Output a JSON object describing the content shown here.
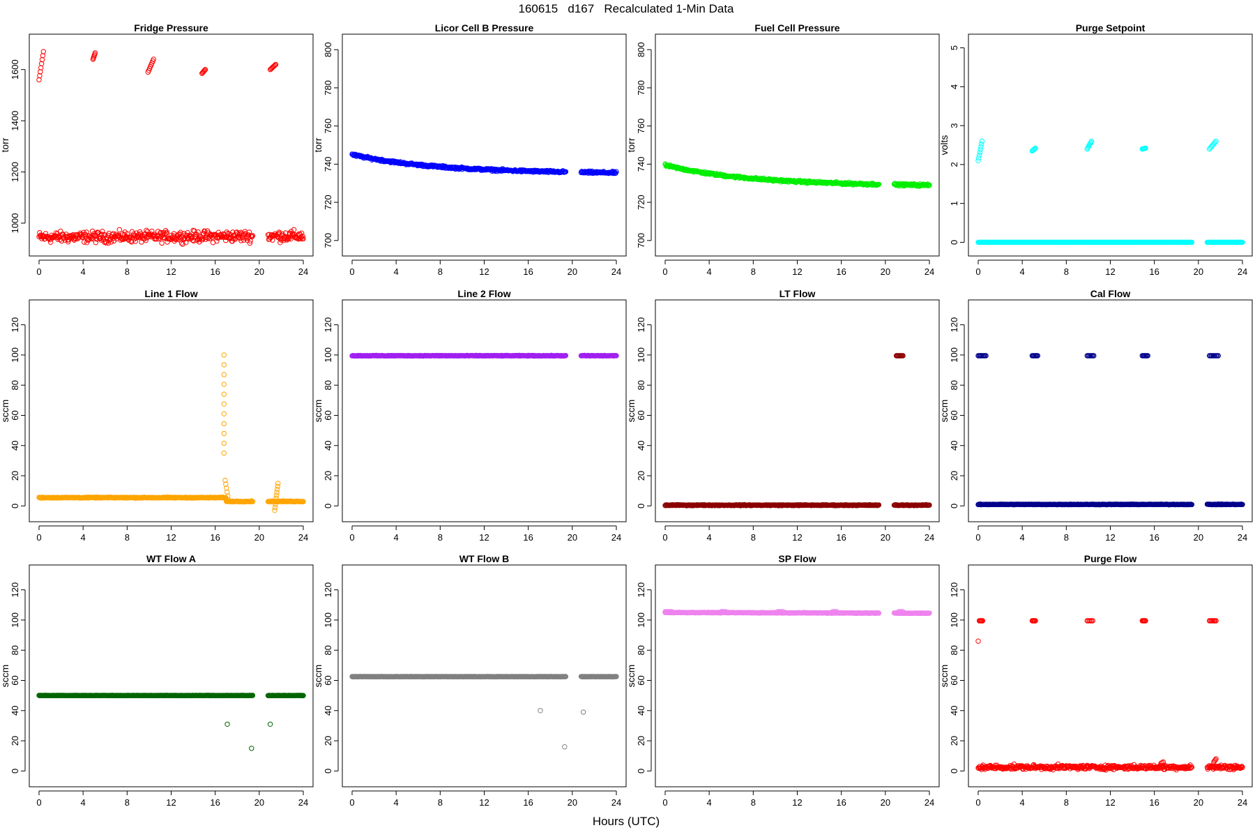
{
  "figure": {
    "title": "160615   d167   Recalculated 1-Min Data",
    "xlabel": "Hours (UTC)"
  },
  "chart_data": [
    {
      "type": "scatter",
      "title": "Fridge Pressure",
      "ylabel": "torr",
      "color": "#ff0000",
      "xlim": [
        0,
        24
      ],
      "xticks": [
        0,
        4,
        8,
        12,
        16,
        20,
        24
      ],
      "ylim": [
        910,
        1700
      ],
      "yticks": [
        1000,
        1200,
        1400,
        1600
      ],
      "gaps": [
        [
          19.4,
          20.8
        ]
      ],
      "baseline": {
        "start": 945,
        "end": 950,
        "noise": 22
      },
      "segments": [
        {
          "x0": 0.0,
          "x1": 0.4,
          "y0": 1560,
          "y1": 1670,
          "n": 8
        },
        {
          "x0": 4.9,
          "x1": 5.1,
          "y0": 1640,
          "y1": 1665,
          "n": 6
        },
        {
          "x0": 9.9,
          "x1": 10.4,
          "y0": 1590,
          "y1": 1640,
          "n": 8
        },
        {
          "x0": 14.8,
          "x1": 15.1,
          "y0": 1585,
          "y1": 1600,
          "n": 6
        },
        {
          "x0": 21.0,
          "x1": 21.5,
          "y0": 1600,
          "y1": 1620,
          "n": 8
        }
      ]
    },
    {
      "type": "scatter",
      "title": "Licor Cell B Pressure",
      "ylabel": "torr",
      "color": "#0000ff",
      "xlim": [
        0,
        24
      ],
      "xticks": [
        0,
        4,
        8,
        12,
        16,
        20,
        24
      ],
      "ylim": [
        697,
        803
      ],
      "yticks": [
        700,
        720,
        740,
        760,
        780,
        800
      ],
      "gaps": [
        [
          19.4,
          20.8
        ]
      ],
      "baseline": {
        "start": 745,
        "end": 735.5,
        "noise": 0.6,
        "shape": "decay"
      },
      "segments": []
    },
    {
      "type": "scatter",
      "title": "Fuel Cell Pressure",
      "ylabel": "torr",
      "color": "#00ee00",
      "xlim": [
        0,
        24
      ],
      "xticks": [
        0,
        4,
        8,
        12,
        16,
        20,
        24
      ],
      "ylim": [
        697,
        803
      ],
      "yticks": [
        700,
        720,
        740,
        760,
        780,
        800
      ],
      "gaps": [
        [
          19.4,
          20.8
        ]
      ],
      "baseline": {
        "start": 739.5,
        "end": 729,
        "noise": 0.6,
        "shape": "decay"
      },
      "segments": []
    },
    {
      "type": "scatter",
      "title": "Purge Setpoint",
      "ylabel": "volts",
      "color": "#00ffff",
      "xlim": [
        0,
        24
      ],
      "xticks": [
        0,
        4,
        8,
        12,
        16,
        20,
        24
      ],
      "ylim": [
        -0.1,
        5.1
      ],
      "yticks": [
        0,
        1,
        2,
        3,
        4,
        5
      ],
      "gaps": [
        [
          19.4,
          20.8
        ]
      ],
      "baseline": {
        "start": 0,
        "end": 0,
        "noise": 0
      },
      "segments": [
        {
          "x0": 0.0,
          "x1": 0.35,
          "y0": 2.1,
          "y1": 2.6,
          "n": 8
        },
        {
          "x0": 4.9,
          "x1": 5.2,
          "y0": 2.35,
          "y1": 2.42,
          "n": 6
        },
        {
          "x0": 9.9,
          "x1": 10.3,
          "y0": 2.4,
          "y1": 2.6,
          "n": 8
        },
        {
          "x0": 14.9,
          "x1": 15.2,
          "y0": 2.4,
          "y1": 2.42,
          "n": 6
        },
        {
          "x0": 21.0,
          "x1": 21.6,
          "y0": 2.4,
          "y1": 2.6,
          "n": 8
        }
      ]
    },
    {
      "type": "scatter",
      "title": "Line 1 Flow",
      "ylabel": "sccm",
      "color": "#ffa500",
      "xlim": [
        0,
        24
      ],
      "xticks": [
        0,
        4,
        8,
        12,
        16,
        20,
        24
      ],
      "ylim": [
        -4,
        130
      ],
      "yticks": [
        0,
        20,
        40,
        60,
        80,
        100,
        120
      ],
      "gaps": [
        [
          19.4,
          20.8
        ]
      ],
      "baseline": {
        "start": 5.5,
        "end": 3,
        "noise": 0.3,
        "shape": "step",
        "step_x": 17.0
      },
      "segments": [
        {
          "x0": 16.8,
          "x1": 16.8,
          "y0": 100,
          "y1": 35,
          "n": 11
        },
        {
          "x0": 16.9,
          "x1": 17.2,
          "y0": 17,
          "y1": 4,
          "n": 6
        },
        {
          "x0": 21.4,
          "x1": 21.7,
          "y0": -3,
          "y1": 15,
          "n": 10
        }
      ]
    },
    {
      "type": "scatter",
      "title": "Line 2 Flow",
      "ylabel": "sccm",
      "color": "#a020f0",
      "xlim": [
        0,
        24
      ],
      "xticks": [
        0,
        4,
        8,
        12,
        16,
        20,
        24
      ],
      "ylim": [
        -4,
        130
      ],
      "yticks": [
        0,
        20,
        40,
        60,
        80,
        100,
        120
      ],
      "gaps": [
        [
          19.4,
          20.8
        ]
      ],
      "baseline": {
        "start": 99.5,
        "end": 99.5,
        "noise": 0.2
      },
      "segments": []
    },
    {
      "type": "scatter",
      "title": "LT Flow",
      "ylabel": "sccm",
      "color": "#8b0000",
      "xlim": [
        0,
        24
      ],
      "xticks": [
        0,
        4,
        8,
        12,
        16,
        20,
        24
      ],
      "ylim": [
        -4,
        130
      ],
      "yticks": [
        0,
        20,
        40,
        60,
        80,
        100,
        120
      ],
      "gaps": [
        [
          19.4,
          20.8
        ]
      ],
      "baseline": {
        "start": 0.5,
        "end": 0.5,
        "noise": 0.3
      },
      "segments": [
        {
          "x0": 21.0,
          "x1": 21.6,
          "y0": 99.5,
          "y1": 99.5,
          "n": 10
        }
      ]
    },
    {
      "type": "scatter",
      "title": "Cal Flow",
      "ylabel": "sccm",
      "color": "#00008b",
      "xlim": [
        0,
        24
      ],
      "xticks": [
        0,
        4,
        8,
        12,
        16,
        20,
        24
      ],
      "ylim": [
        -4,
        130
      ],
      "yticks": [
        0,
        20,
        40,
        60,
        80,
        100,
        120
      ],
      "gaps": [
        [
          19.4,
          20.8
        ]
      ],
      "baseline": {
        "start": 1,
        "end": 1,
        "noise": 0.2
      },
      "segments": [
        {
          "x0": 0.0,
          "x1": 0.7,
          "y0": 99.5,
          "y1": 99.5,
          "n": 10
        },
        {
          "x0": 4.9,
          "x1": 5.4,
          "y0": 99.5,
          "y1": 99.5,
          "n": 8
        },
        {
          "x0": 9.9,
          "x1": 10.5,
          "y0": 99.5,
          "y1": 99.5,
          "n": 8
        },
        {
          "x0": 14.9,
          "x1": 15.4,
          "y0": 99.5,
          "y1": 99.5,
          "n": 8
        },
        {
          "x0": 21.0,
          "x1": 21.8,
          "y0": 99.5,
          "y1": 99.5,
          "n": 10
        }
      ]
    },
    {
      "type": "scatter",
      "title": "WT Flow A",
      "ylabel": "sccm",
      "color": "#006400",
      "xlim": [
        0,
        24
      ],
      "xticks": [
        0,
        4,
        8,
        12,
        16,
        20,
        24
      ],
      "ylim": [
        -4,
        130
      ],
      "yticks": [
        0,
        20,
        40,
        60,
        80,
        100,
        120
      ],
      "gaps": [
        [
          19.4,
          20.8
        ]
      ],
      "baseline": {
        "start": 50,
        "end": 50,
        "noise": 0.1
      },
      "segments": [
        {
          "x0": 17.1,
          "x1": 17.1,
          "y0": 31,
          "y1": 31,
          "n": 1
        },
        {
          "x0": 19.3,
          "x1": 19.3,
          "y0": 15,
          "y1": 15,
          "n": 1
        },
        {
          "x0": 21.0,
          "x1": 21.0,
          "y0": 31,
          "y1": 31,
          "n": 1
        }
      ]
    },
    {
      "type": "scatter",
      "title": "WT Flow B",
      "ylabel": "sccm",
      "color": "#808080",
      "xlim": [
        0,
        24
      ],
      "xticks": [
        0,
        4,
        8,
        12,
        16,
        20,
        24
      ],
      "ylim": [
        -4,
        130
      ],
      "yticks": [
        0,
        20,
        40,
        60,
        80,
        100,
        120
      ],
      "gaps": [
        [
          19.4,
          20.8
        ]
      ],
      "baseline": {
        "start": 62.5,
        "end": 62.5,
        "noise": 0.1
      },
      "segments": [
        {
          "x0": 17.1,
          "x1": 17.1,
          "y0": 40,
          "y1": 40,
          "n": 1
        },
        {
          "x0": 19.3,
          "x1": 19.3,
          "y0": 16,
          "y1": 16,
          "n": 1
        },
        {
          "x0": 21.0,
          "x1": 21.0,
          "y0": 39,
          "y1": 39,
          "n": 1
        }
      ]
    },
    {
      "type": "scatter",
      "title": "SP Flow",
      "ylabel": "sccm",
      "color": "#ee82ee",
      "xlim": [
        0,
        24
      ],
      "xticks": [
        0,
        4,
        8,
        12,
        16,
        20,
        24
      ],
      "ylim": [
        -4,
        130
      ],
      "yticks": [
        0,
        20,
        40,
        60,
        80,
        100,
        120
      ],
      "gaps": [
        [
          19.4,
          20.8
        ]
      ],
      "baseline": {
        "start": 105,
        "end": 104.5,
        "noise": 0.2
      },
      "segments": [
        {
          "x0": 0.0,
          "x1": 0.6,
          "y0": 105.5,
          "y1": 105.5,
          "n": 6
        },
        {
          "x0": 5.1,
          "x1": 5.5,
          "y0": 105.5,
          "y1": 105.5,
          "n": 4
        },
        {
          "x0": 10.2,
          "x1": 10.7,
          "y0": 105.5,
          "y1": 105.5,
          "n": 4
        },
        {
          "x0": 15.2,
          "x1": 15.6,
          "y0": 105.5,
          "y1": 105.5,
          "n": 4
        },
        {
          "x0": 21.2,
          "x1": 21.6,
          "y0": 105.5,
          "y1": 105.5,
          "n": 4
        }
      ]
    },
    {
      "type": "scatter",
      "title": "Purge Flow",
      "ylabel": "sccm",
      "color": "#ff0000",
      "xlim": [
        0,
        24
      ],
      "xticks": [
        0,
        4,
        8,
        12,
        16,
        20,
        24
      ],
      "ylim": [
        -4,
        130
      ],
      "yticks": [
        0,
        20,
        40,
        60,
        80,
        100,
        120
      ],
      "gaps": [
        [
          19.4,
          20.8
        ]
      ],
      "baseline": {
        "start": 2.5,
        "end": 2.5,
        "noise": 1.5
      },
      "segments": [
        {
          "x0": 0.0,
          "x1": 0.0,
          "y0": 86,
          "y1": 86,
          "n": 1
        },
        {
          "x0": 0.1,
          "x1": 0.4,
          "y0": 99.5,
          "y1": 99.5,
          "n": 6
        },
        {
          "x0": 4.9,
          "x1": 5.2,
          "y0": 99.5,
          "y1": 99.5,
          "n": 6
        },
        {
          "x0": 9.9,
          "x1": 10.4,
          "y0": 99.5,
          "y1": 99.5,
          "n": 6
        },
        {
          "x0": 14.9,
          "x1": 15.2,
          "y0": 99.5,
          "y1": 99.5,
          "n": 6
        },
        {
          "x0": 21.0,
          "x1": 21.6,
          "y0": 99.5,
          "y1": 99.5,
          "n": 8
        },
        {
          "x0": 16.6,
          "x1": 16.8,
          "y0": 5,
          "y1": 6,
          "n": 3
        },
        {
          "x0": 21.4,
          "x1": 21.6,
          "y0": 6,
          "y1": 8,
          "n": 4
        }
      ]
    }
  ]
}
